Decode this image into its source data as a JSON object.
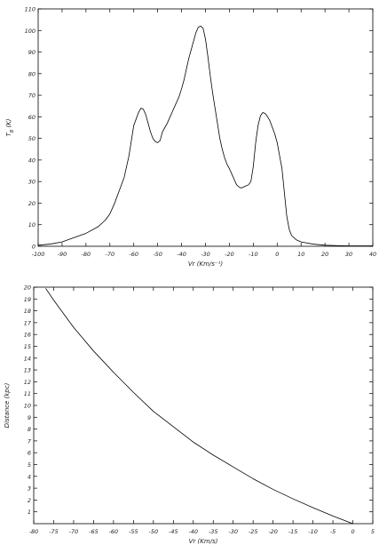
{
  "chart_data": [
    {
      "type": "line",
      "xlabel": "Vr (Km/s⁻¹)",
      "ylabel": "T_B (K)",
      "xlim": [
        -100,
        40
      ],
      "ylim": [
        0,
        110
      ],
      "x_ticks": [
        -100,
        -90,
        -80,
        -70,
        -60,
        -50,
        -40,
        -30,
        -20,
        -10,
        0,
        10,
        20,
        30,
        40
      ],
      "y_ticks": [
        0,
        10,
        20,
        30,
        40,
        50,
        60,
        70,
        80,
        90,
        100,
        110
      ],
      "grid": false,
      "series": [
        {
          "x": [
            -100,
            -95,
            -90,
            -85,
            -80,
            -75,
            -72,
            -70,
            -68,
            -66,
            -64,
            -62,
            -60,
            -58,
            -57,
            -56,
            -55,
            -54,
            -53,
            -52,
            -51,
            -50,
            -49,
            -48,
            -47,
            -46,
            -45,
            -44,
            -43,
            -42,
            -41,
            -40,
            -39,
            -38,
            -37,
            -36,
            -35,
            -34,
            -33,
            -32,
            -31,
            -30,
            -29,
            -28,
            -27,
            -26,
            -25,
            -24,
            -23,
            -22,
            -21,
            -20,
            -19,
            -18,
            -17,
            -16,
            -15,
            -14,
            -13,
            -12,
            -11,
            -10,
            -9,
            -8,
            -7,
            -6,
            -5,
            -4,
            -3,
            -2,
            -1,
            0,
            1,
            2,
            3,
            4,
            5,
            6,
            8,
            10,
            15,
            20,
            25,
            30,
            35,
            40
          ],
          "y": [
            0.5,
            1,
            2,
            4,
            6,
            9,
            12,
            15,
            20,
            26,
            32,
            42,
            56,
            62,
            64,
            63.5,
            61,
            57,
            53,
            50,
            48.5,
            48,
            49,
            53,
            55,
            57,
            59.5,
            62,
            64.5,
            67,
            69.5,
            73,
            77,
            82,
            87,
            91,
            95,
            99,
            101.5,
            102,
            101,
            96,
            88,
            79,
            71,
            64,
            57,
            50,
            45,
            41,
            38,
            36,
            33.5,
            31,
            28.5,
            27.5,
            27,
            27.5,
            28,
            28.5,
            30,
            37,
            48,
            56,
            60.5,
            62,
            61.5,
            60,
            58,
            55,
            52,
            48,
            42,
            36,
            25,
            14,
            8,
            5,
            3,
            2,
            1,
            0.5,
            0.3,
            0.2,
            0.2,
            0.2
          ]
        }
      ]
    },
    {
      "type": "line",
      "xlabel": "Vr (Km/s)",
      "ylabel": "Distance (kpc)",
      "xlim": [
        -80,
        5
      ],
      "ylim": [
        0,
        20
      ],
      "x_ticks": [
        -80,
        -75,
        -70,
        -65,
        -60,
        -55,
        -50,
        -45,
        -40,
        -35,
        -30,
        -25,
        -20,
        -15,
        -10,
        -5,
        0,
        5
      ],
      "y_ticks": [
        1,
        2,
        3,
        4,
        5,
        6,
        7,
        8,
        9,
        10,
        11,
        12,
        13,
        14,
        15,
        16,
        17,
        18,
        19,
        20
      ],
      "grid": false,
      "series": [
        {
          "x": [
            -77,
            -75,
            -70,
            -65,
            -60,
            -55,
            -50,
            -45,
            -40,
            -35,
            -30,
            -25,
            -20,
            -15,
            -10,
            -5,
            0
          ],
          "y": [
            19.9,
            18.9,
            16.6,
            14.6,
            12.8,
            11.1,
            9.5,
            8.2,
            6.9,
            5.8,
            4.8,
            3.8,
            2.9,
            2.1,
            1.35,
            0.65,
            0
          ]
        }
      ]
    }
  ]
}
